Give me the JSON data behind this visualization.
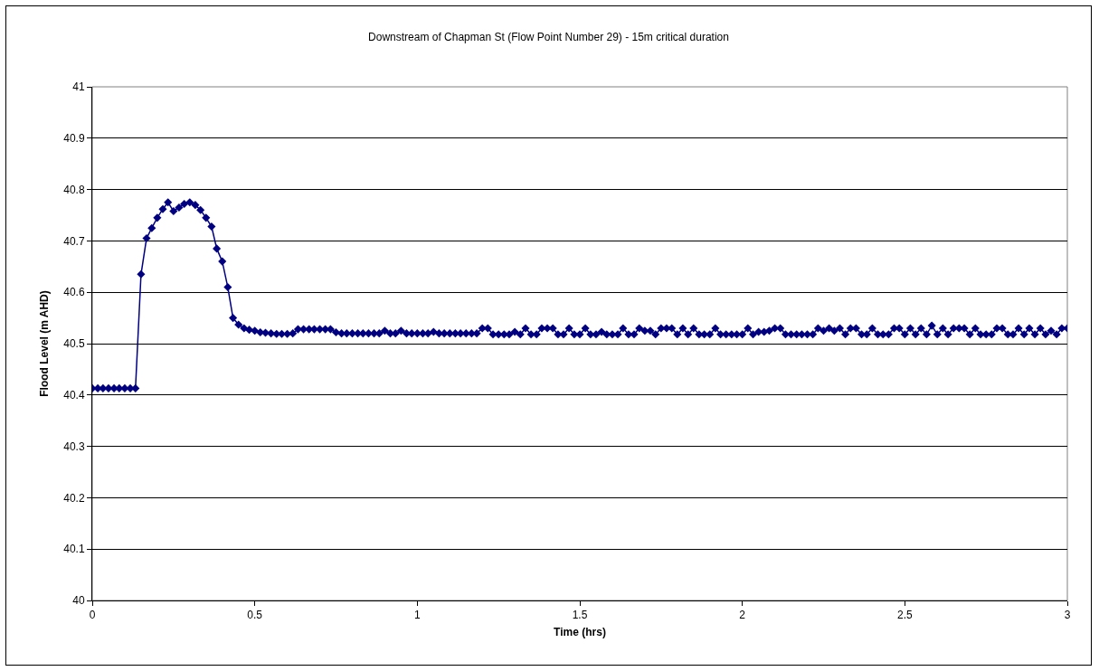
{
  "chart_data": {
    "type": "line",
    "title": "Downstream of Chapman St (Flow Point Number 29) - 15m critical duration",
    "xlabel": "Time (hrs)",
    "ylabel": "Flood Level (m AHD)",
    "x": [
      0,
      0.017,
      0.033,
      0.05,
      0.067,
      0.083,
      0.1,
      0.117,
      0.133,
      0.15,
      0.167,
      0.183,
      0.2,
      0.217,
      0.233,
      0.25,
      0.267,
      0.283,
      0.3,
      0.317,
      0.333,
      0.35,
      0.367,
      0.383,
      0.4,
      0.417,
      0.433,
      0.45,
      0.467,
      0.483,
      0.5,
      0.517,
      0.533,
      0.55,
      0.567,
      0.583,
      0.6,
      0.617,
      0.633,
      0.65,
      0.667,
      0.683,
      0.7,
      0.717,
      0.733,
      0.75,
      0.767,
      0.783,
      0.8,
      0.817,
      0.833,
      0.85,
      0.867,
      0.883,
      0.9,
      0.917,
      0.933,
      0.95,
      0.967,
      0.983,
      1,
      1.017,
      1.033,
      1.05,
      1.067,
      1.083,
      1.1,
      1.117,
      1.133,
      1.15,
      1.167,
      1.183,
      1.2,
      1.217,
      1.233,
      1.25,
      1.267,
      1.283,
      1.3,
      1.317,
      1.333,
      1.35,
      1.367,
      1.383,
      1.4,
      1.417,
      1.433,
      1.45,
      1.467,
      1.483,
      1.5,
      1.517,
      1.533,
      1.55,
      1.567,
      1.583,
      1.6,
      1.617,
      1.633,
      1.65,
      1.667,
      1.683,
      1.7,
      1.717,
      1.733,
      1.75,
      1.767,
      1.783,
      1.8,
      1.817,
      1.833,
      1.85,
      1.867,
      1.883,
      1.9,
      1.917,
      1.933,
      1.95,
      1.967,
      1.983,
      2,
      2.017,
      2.033,
      2.05,
      2.067,
      2.083,
      2.1,
      2.117,
      2.133,
      2.15,
      2.167,
      2.183,
      2.2,
      2.217,
      2.233,
      2.25,
      2.267,
      2.283,
      2.3,
      2.317,
      2.333,
      2.35,
      2.367,
      2.383,
      2.4,
      2.417,
      2.433,
      2.45,
      2.467,
      2.483,
      2.5,
      2.517,
      2.533,
      2.55,
      2.567,
      2.583,
      2.6,
      2.617,
      2.633,
      2.65,
      2.667,
      2.683,
      2.7,
      2.717,
      2.733,
      2.75,
      2.767,
      2.783,
      2.8,
      2.817,
      2.833,
      2.85,
      2.867,
      2.883,
      2.9,
      2.917,
      2.933,
      2.95,
      2.967,
      2.983,
      3
    ],
    "series": [
      {
        "color": "#000080",
        "values": [
          40.413,
          40.413,
          40.413,
          40.413,
          40.413,
          40.413,
          40.413,
          40.413,
          40.413,
          40.635,
          40.705,
          40.725,
          40.745,
          40.762,
          40.775,
          40.758,
          40.765,
          40.772,
          40.775,
          40.77,
          40.76,
          40.745,
          40.728,
          40.685,
          40.66,
          40.61,
          40.55,
          40.537,
          40.53,
          40.527,
          40.525,
          40.522,
          40.521,
          40.52,
          40.519,
          40.519,
          40.519,
          40.52,
          40.528,
          40.528,
          40.528,
          40.528,
          40.528,
          40.528,
          40.528,
          40.522,
          40.52,
          40.52,
          40.52,
          40.52,
          40.52,
          40.52,
          40.52,
          40.52,
          40.525,
          40.52,
          40.52,
          40.525,
          40.52,
          40.52,
          40.52,
          40.52,
          40.52,
          40.523,
          40.52,
          40.52,
          40.52,
          40.52,
          40.52,
          40.52,
          40.52,
          40.52,
          40.53,
          40.53,
          40.518,
          40.518,
          40.518,
          40.518,
          40.523,
          40.518,
          40.53,
          40.518,
          40.518,
          40.53,
          40.53,
          40.53,
          40.518,
          40.518,
          40.53,
          40.518,
          40.518,
          40.53,
          40.518,
          40.518,
          40.523,
          40.518,
          40.518,
          40.518,
          40.53,
          40.518,
          40.518,
          40.53,
          40.525,
          40.525,
          40.518,
          40.53,
          40.53,
          40.53,
          40.518,
          40.53,
          40.518,
          40.53,
          40.518,
          40.518,
          40.518,
          40.53,
          40.518,
          40.518,
          40.518,
          40.518,
          40.518,
          40.53,
          40.518,
          40.523,
          40.523,
          40.525,
          40.53,
          40.53,
          40.518,
          40.518,
          40.518,
          40.518,
          40.518,
          40.518,
          40.53,
          40.525,
          40.53,
          40.525,
          40.53,
          40.518,
          40.53,
          40.53,
          40.518,
          40.518,
          40.53,
          40.518,
          40.518,
          40.518,
          40.53,
          40.53,
          40.518,
          40.53,
          40.518,
          40.53,
          40.518,
          40.535,
          40.518,
          40.53,
          40.518,
          40.53,
          40.53,
          40.53,
          40.518,
          40.53,
          40.518,
          40.518,
          40.518,
          40.53,
          40.53,
          40.518,
          40.518,
          40.53,
          40.518,
          40.53,
          40.518,
          40.53,
          40.518,
          40.525,
          40.518,
          40.53,
          40.53
        ]
      }
    ],
    "xlim": [
      0,
      3
    ],
    "xticks": [
      0,
      0.5,
      1,
      1.5,
      2,
      2.5,
      3
    ],
    "ylim": [
      40,
      41
    ],
    "yticks": [
      40,
      40.1,
      40.2,
      40.3,
      40.4,
      40.5,
      40.6,
      40.7,
      40.8,
      40.9,
      41
    ],
    "grid": "y",
    "marker": "diamond",
    "line_style": "solid"
  }
}
